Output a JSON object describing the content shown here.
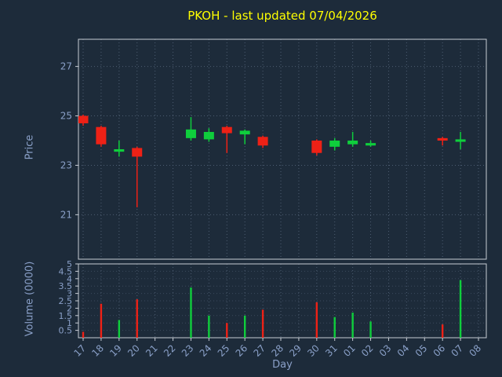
{
  "title": {
    "text": "PKOH - last updated 07/04/2026"
  },
  "colors": {
    "background": "#1d2b3a",
    "title": "#ffff00",
    "axis_label": "#8aa0c8",
    "tick_label": "#8aa0c8",
    "spine": "#c7ccd4",
    "grid": "#5a6a80",
    "up": "#0fce3c",
    "down": "#ee2116"
  },
  "chart_data": {
    "type": "candlestick",
    "title": "PKOH - last updated 07/04/2026",
    "xlabel": "Day",
    "price_ylabel": "Price",
    "volume_ylabel": "Volume (0000)",
    "x_categories": [
      "17",
      "18",
      "19",
      "20",
      "21",
      "22",
      "23",
      "24",
      "25",
      "26",
      "27",
      "28",
      "29",
      "30",
      "31",
      "01",
      "02",
      "03",
      "04",
      "05",
      "06",
      "07",
      "08"
    ],
    "price_ticks": [
      21,
      23,
      25,
      27
    ],
    "price_range": [
      19.2,
      28.1
    ],
    "volume_ticks": [
      0.5,
      1,
      1.5,
      2,
      2.5,
      3,
      3.5,
      4,
      4.5,
      5
    ],
    "volume_range": [
      0,
      5
    ],
    "grid": true,
    "candles": [
      {
        "day": "17",
        "open": 25.0,
        "high": 25.05,
        "low": 24.6,
        "close": 24.7,
        "volume": 0.4
      },
      {
        "day": "18",
        "open": 24.55,
        "high": 24.6,
        "low": 23.75,
        "close": 23.85,
        "volume": 2.3
      },
      {
        "day": "19",
        "open": 23.55,
        "high": 24.0,
        "low": 23.35,
        "close": 23.65,
        "volume": 1.2
      },
      {
        "day": "20",
        "open": 23.7,
        "high": 23.75,
        "low": 21.3,
        "close": 23.35,
        "volume": 2.6
      },
      {
        "day": "23",
        "open": 24.1,
        "high": 24.95,
        "low": 24.0,
        "close": 24.45,
        "volume": 3.4
      },
      {
        "day": "24",
        "open": 24.05,
        "high": 24.5,
        "low": 23.95,
        "close": 24.35,
        "volume": 1.5
      },
      {
        "day": "25",
        "open": 24.55,
        "high": 24.6,
        "low": 23.5,
        "close": 24.3,
        "volume": 1.0
      },
      {
        "day": "26",
        "open": 24.25,
        "high": 24.45,
        "low": 23.85,
        "close": 24.4,
        "volume": 1.5
      },
      {
        "day": "27",
        "open": 24.15,
        "high": 24.2,
        "low": 23.7,
        "close": 23.8,
        "volume": 1.9
      },
      {
        "day": "30",
        "open": 24.0,
        "high": 24.05,
        "low": 23.4,
        "close": 23.5,
        "volume": 2.4
      },
      {
        "day": "31",
        "open": 23.75,
        "high": 24.1,
        "low": 23.6,
        "close": 24.0,
        "volume": 1.4
      },
      {
        "day": "01",
        "open": 23.85,
        "high": 24.35,
        "low": 23.75,
        "close": 24.0,
        "volume": 1.7
      },
      {
        "day": "02",
        "open": 23.8,
        "high": 24.0,
        "low": 23.75,
        "close": 23.9,
        "volume": 1.1
      },
      {
        "day": "06",
        "open": 24.1,
        "high": 24.15,
        "low": 23.8,
        "close": 24.0,
        "volume": 0.9
      },
      {
        "day": "07",
        "open": 23.95,
        "high": 24.35,
        "low": 23.65,
        "close": 24.05,
        "volume": 3.9
      }
    ]
  }
}
